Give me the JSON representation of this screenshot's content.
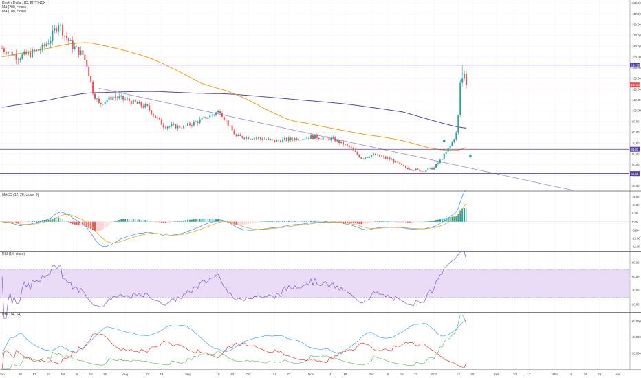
{
  "header": {
    "symbol_line": "Dash / Dollar, 1D, BITFINEX",
    "ma1": "MA (200, close)",
    "ma2": "MA (100, close)"
  },
  "indicators": {
    "macd_label": "MACD (12, 26, close, 9)",
    "rsi_label": "RSI (14, close)",
    "dmi_label": "DMI (14, 14)"
  },
  "chart_data": [
    {
      "type": "candlestick",
      "pane": "price",
      "yticks": [
        "200.00",
        "190.00",
        "180.00",
        "170.00",
        "160.00",
        "150.00",
        "140.00",
        "130.00",
        "120.00",
        "110.00",
        "100.00",
        "90.00",
        "80.00",
        "70.00",
        "60.00",
        "50.00",
        "40.00",
        "30.00"
      ],
      "ylim": [
        26,
        203
      ],
      "last_price_label": "124.04",
      "horizontal_level_labels": [
        "142.55",
        "64.20",
        "41.59"
      ],
      "horizontal_levels": [
        142.5,
        64.2,
        41.6
      ],
      "current_price_level": 124,
      "ma_colors": {
        "ma200": "#5b3fa0",
        "ma100": "#f39c12"
      },
      "up_color": "#26a69a",
      "down_color": "#ef5350"
    },
    {
      "type": "line",
      "pane": "macd",
      "yticks": [
        "15.00",
        "10.00",
        "5.00",
        "0.00",
        "-5.00",
        "-10.00",
        "-15.00"
      ],
      "ylim": [
        -17,
        18
      ]
    },
    {
      "type": "line",
      "pane": "rsi",
      "yticks": [
        "80.00",
        "60.00",
        "40.00",
        "20.00"
      ],
      "ylim": [
        10,
        95
      ],
      "band": [
        30,
        70
      ]
    },
    {
      "type": "line",
      "pane": "dmi",
      "yticks": [
        "60.0000",
        "40.0000",
        "20.0000"
      ],
      "ylim": [
        0,
        70
      ]
    }
  ],
  "xaxis": {
    "ticks": [
      {
        "label": "Jun",
        "i": 0
      },
      {
        "label": "10",
        "i": 9
      },
      {
        "label": "17",
        "i": 16
      },
      {
        "label": "24",
        "i": 23
      },
      {
        "label": "Jul",
        "i": 30
      },
      {
        "label": "8",
        "i": 37
      },
      {
        "label": "15",
        "i": 44
      },
      {
        "label": "22",
        "i": 51
      },
      {
        "label": "Aug",
        "i": 61
      },
      {
        "label": "12",
        "i": 72
      },
      {
        "label": "19",
        "i": 79
      },
      {
        "label": "Sep",
        "i": 92
      },
      {
        "label": "16",
        "i": 107
      },
      {
        "label": "23",
        "i": 114
      },
      {
        "label": "Oct",
        "i": 122
      },
      {
        "label": "14",
        "i": 135
      },
      {
        "label": "21",
        "i": 142
      },
      {
        "label": "Nov",
        "i": 153
      },
      {
        "label": "11",
        "i": 163
      },
      {
        "label": "18",
        "i": 170
      },
      {
        "label": "Dec",
        "i": 183
      },
      {
        "label": "9",
        "i": 191
      },
      {
        "label": "16",
        "i": 198
      },
      {
        "label": "23",
        "i": 205
      },
      {
        "label": "2020",
        "i": 214
      },
      {
        "label": "13",
        "i": 226
      },
      {
        "label": "20",
        "i": 233
      },
      {
        "label": "Feb",
        "i": 245
      },
      {
        "label": "10",
        "i": 254
      },
      {
        "label": "17",
        "i": 261
      },
      {
        "label": "Mar",
        "i": 274
      },
      {
        "label": "9",
        "i": 282
      },
      {
        "label": "16",
        "i": 289
      },
      {
        "label": "23",
        "i": 296
      },
      {
        "label": "Apr",
        "i": 305
      }
    ]
  }
}
